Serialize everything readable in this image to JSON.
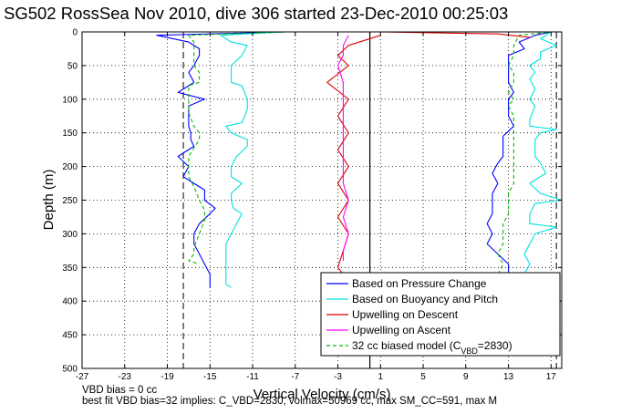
{
  "chart_data": {
    "type": "line",
    "title": "SG502 RossSea Nov 2010, dive 306 started 23-Dec-2010 00:25:03",
    "xlabel": "Vertical Velocity (cm/s)",
    "ylabel": "Depth (m)",
    "xlim": [
      -27,
      18
    ],
    "ylim": [
      500,
      0
    ],
    "y_reversed": true,
    "xticks": [
      "-27",
      "-23",
      "-19",
      "-15",
      "-11",
      "-7",
      "-3",
      "1",
      "5",
      "9",
      "13",
      "17"
    ],
    "yticks": [
      "0",
      "50",
      "100",
      "150",
      "200",
      "250",
      "300",
      "350",
      "400",
      "450",
      "500"
    ],
    "grid": true,
    "legend_position": "bottom-right",
    "vertical_lines": [
      -17.5,
      0,
      17.5
    ],
    "series": [
      {
        "name": "Based on Pressure Change",
        "color": "#0000ff",
        "group": "descent",
        "depth": [
          0,
          5,
          15,
          25,
          35,
          50,
          60,
          75,
          90,
          100,
          110,
          125,
          140,
          150,
          160,
          170,
          185,
          200,
          215,
          225,
          235,
          250,
          262,
          270,
          285,
          300,
          315,
          330,
          345,
          360,
          375,
          380
        ],
        "velocity": [
          -8,
          -20,
          -17,
          -16,
          -16,
          -16.5,
          -17,
          -16.5,
          -18,
          -15.5,
          -17,
          -17,
          -17,
          -16.8,
          -16.8,
          -16.5,
          -18,
          -17,
          -17.5,
          -16.5,
          -15.5,
          -15.5,
          -14.5,
          -15,
          -16,
          -16.5,
          -16.5,
          -16,
          -15.5,
          -15,
          -15,
          -15
        ]
      },
      {
        "name": "Based on Buoyancy and Pitch",
        "color": "#00e0e0",
        "group": "descent",
        "depth": [
          0,
          5,
          15,
          20,
          35,
          50,
          60,
          75,
          80,
          100,
          115,
          135,
          140,
          150,
          160,
          170,
          185,
          200,
          215,
          225,
          240,
          250,
          262,
          270,
          285,
          300,
          315,
          330,
          345,
          360,
          375,
          380
        ],
        "velocity": [
          -8,
          -14,
          -13,
          -11.5,
          -12,
          -13,
          -13,
          -13,
          -12,
          -11.5,
          -11.5,
          -12,
          -13.5,
          -13,
          -11.5,
          -11.5,
          -12.5,
          -13,
          -13,
          -12,
          -13,
          -13,
          -12.8,
          -12,
          -12.5,
          -13,
          -13.5,
          -13.5,
          -13.5,
          -13.5,
          -13.5,
          -13
        ]
      },
      {
        "name": "Upwelling on Descent",
        "color": "#dd0000",
        "group": "upwelling",
        "depth": [
          5,
          20,
          35,
          50,
          75,
          100,
          125,
          150,
          175,
          200,
          225,
          250,
          275,
          300,
          325,
          350,
          360
        ],
        "velocity": [
          1,
          -2,
          -3,
          -2,
          -4,
          -2,
          -3,
          -2,
          -3,
          -2,
          -3,
          -2,
          -3,
          -2,
          -2.5,
          -3,
          -2.5
        ]
      },
      {
        "name": "Upwelling on Ascent",
        "color": "#ff00ff",
        "group": "upwelling",
        "depth": [
          5,
          20,
          35,
          50,
          75,
          100,
          125,
          150,
          175,
          200,
          225,
          250,
          275,
          300,
          325,
          340
        ],
        "velocity": [
          -2,
          -2.5,
          -2.5,
          -3,
          -2.5,
          -2.5,
          -2.5,
          -2.5,
          -2.5,
          -2.5,
          -2.5,
          -2,
          -2.5,
          -2,
          -2.5,
          -2.5
        ]
      },
      {
        "name": "32 cc biased model (CVBD=2830)",
        "legend_sub": "VBD",
        "legend_post": "=2830)",
        "color": "#00bb00",
        "dash": "4,3",
        "group": "model",
        "depth": [
          0,
          5,
          15,
          35,
          50,
          60,
          75,
          80,
          100,
          120,
          140,
          150,
          160,
          185,
          200,
          215,
          230,
          250,
          265,
          280,
          300,
          320,
          330,
          340,
          345
        ],
        "velocity": [
          -8,
          -17,
          -16.5,
          -16.5,
          -16.5,
          -16,
          -16,
          -17,
          -17,
          -17,
          -16.5,
          -16,
          -16,
          -17,
          -17,
          -17,
          -16.5,
          -16,
          -15.5,
          -15.5,
          -16,
          -16.5,
          -16.5,
          -17,
          -16
        ]
      },
      {
        "name": "",
        "color": "#0000ff",
        "group": "ascent",
        "depth": [
          360,
          345,
          330,
          315,
          300,
          285,
          270,
          255,
          240,
          225,
          210,
          195,
          185,
          170,
          155,
          140,
          125,
          110,
          100,
          90,
          75,
          65,
          50,
          35,
          25,
          15,
          5,
          0
        ],
        "velocity": [
          13,
          13,
          12,
          11,
          11.5,
          11,
          11.5,
          11.5,
          11.5,
          12,
          11.5,
          12,
          12.5,
          12.5,
          12.5,
          13.5,
          13,
          13,
          13,
          13.5,
          13,
          13,
          13,
          13,
          14.5,
          14,
          15.5,
          17
        ]
      },
      {
        "name": "",
        "color": "#00e0e0",
        "group": "ascent",
        "depth": [
          360,
          345,
          330,
          315,
          300,
          290,
          285,
          270,
          255,
          250,
          240,
          225,
          210,
          195,
          185,
          175,
          160,
          150,
          145,
          140,
          130,
          110,
          100,
          85,
          70,
          60,
          50,
          40,
          30,
          20,
          10,
          0
        ],
        "velocity": [
          14.5,
          15,
          14.5,
          15,
          15.5,
          17.5,
          15,
          15,
          15.5,
          18,
          16,
          15,
          16.5,
          16,
          15.5,
          15.5,
          15.5,
          16,
          17.5,
          15,
          15,
          15.5,
          15,
          15.5,
          15,
          15.5,
          15,
          16,
          16,
          17.5,
          16,
          17
        ]
      },
      {
        "name": "",
        "color": "#dd0000",
        "group": "ascent",
        "depth": [
          0,
          3,
          8
        ],
        "velocity": [
          1,
          12,
          15
        ]
      },
      {
        "name": "",
        "color": "#00bb00",
        "dash": "4,3",
        "group": "model",
        "depth": [
          360,
          345,
          330,
          315,
          300,
          285,
          270,
          255,
          240,
          225,
          210,
          195,
          185,
          170,
          155,
          140,
          125,
          110,
          100,
          90,
          75,
          60,
          50,
          35,
          20,
          5,
          0
        ],
        "velocity": [
          12,
          12.5,
          12,
          12.5,
          12.5,
          12.5,
          13,
          13,
          13,
          13.5,
          13.5,
          13.5,
          13.5,
          13.5,
          13.5,
          13.5,
          13.5,
          13,
          13.5,
          13,
          13.5,
          13.5,
          13,
          13.5,
          13.5,
          14,
          17
        ]
      }
    ]
  },
  "footer": {
    "line1": "VBD bias = 0 cc",
    "line2": "best fit VBD bias=32 implies: C_VBD=2830, volmax=50969 cc, max SM_CC=591, max M"
  }
}
